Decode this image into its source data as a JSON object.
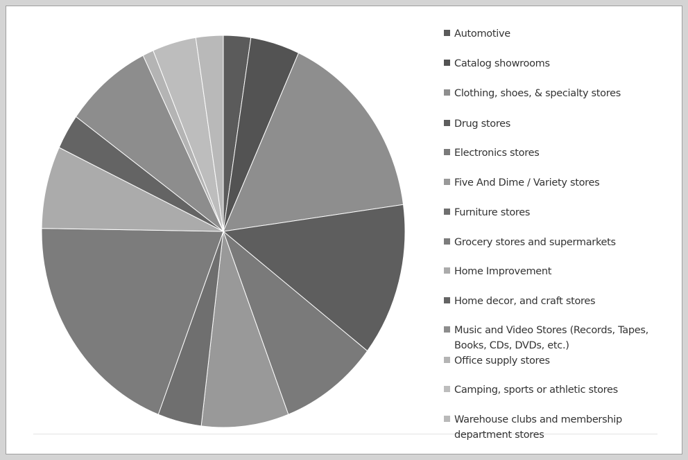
{
  "chart_data": {
    "type": "pie",
    "title": "",
    "start_angle_deg": 0,
    "direction": "clockwise",
    "legend_position": "right",
    "categories": [
      "Automotive",
      "Catalog showrooms",
      "Clothing, shoes, & specialty stores",
      "Drug stores",
      "Electronics stores",
      "Five And Dime / Variety stores",
      "Furniture stores",
      "Grocery stores and supermarkets",
      "Home Improvement",
      "Home decor, and craft stores",
      "Music and Video Stores (Records, Tapes, Books, CDs, DVDs, etc.)",
      "Office supply stores",
      "Camping, sports or athletic stores",
      "Warehouse clubs and membership department stores"
    ],
    "values": [
      2.5,
      4.5,
      16.5,
      13.0,
      9.0,
      8.0,
      4.0,
      20.0,
      7.0,
      3.0,
      8.0,
      1.0,
      4.0,
      2.5
    ],
    "colors": [
      "#5b5b5b",
      "#535353",
      "#8e8e8e",
      "#5e5e5e",
      "#7a7a7a",
      "#999999",
      "#6f6f6f",
      "#7c7c7c",
      "#ababab",
      "#646464",
      "#8d8d8d",
      "#b4b4b4",
      "#bdbdbd",
      "#b9b9b9"
    ]
  }
}
